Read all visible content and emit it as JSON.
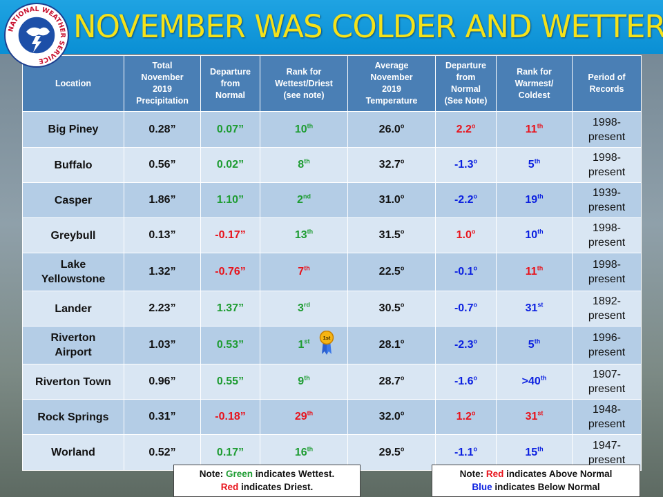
{
  "slide": {
    "title": "NOVEMBER WAS COLDER AND WETTER",
    "logo_text": "NATIONAL WEATHER SERVICE",
    "colors": {
      "title": "#f4e21a",
      "band": "#0a8fd4",
      "header": "#4a7fb5",
      "green": "#1e9c32",
      "red": "#e8121b",
      "blue": "#0a1fe0"
    }
  },
  "table": {
    "headers": {
      "location": "Location",
      "precip": [
        "Total",
        "November",
        "2019",
        "Precipitation"
      ],
      "precip_dep": [
        "Departure",
        "from",
        "Normal"
      ],
      "precip_rank": [
        "Rank for",
        "Wettest/Driest",
        "(see note)"
      ],
      "temp": [
        "Average",
        "November",
        "2019",
        "Temperature"
      ],
      "temp_dep": [
        "Departure",
        "from",
        "Normal",
        "(See Note)"
      ],
      "temp_rank": [
        "Rank for",
        "Warmest/",
        "Coldest"
      ],
      "period": [
        "Period of",
        "Records"
      ]
    },
    "rows": [
      {
        "loc": [
          "Big Piney"
        ],
        "precip": "0.28”",
        "pdep": "0.07”",
        "pdep_c": "green",
        "prank_n": "10",
        "prank_s": "th",
        "prank_c": "green",
        "temp": "26.0",
        "deg": "o",
        "tdep": "2.2",
        "tdep_c": "red",
        "trank_n": "11",
        "trank_s": "th",
        "trank_c": "red",
        "period": [
          "1998-",
          "present"
        ]
      },
      {
        "loc": [
          "Buffalo"
        ],
        "precip": "0.56”",
        "pdep": "0.02”",
        "pdep_c": "green",
        "prank_n": "8",
        "prank_s": "th",
        "prank_c": "green",
        "temp": "32.7",
        "deg": "o",
        "tdep": "-1.3",
        "tdep_c": "blue",
        "trank_n": "5",
        "trank_s": "th",
        "trank_c": "blue",
        "period": [
          "1998-",
          "present"
        ]
      },
      {
        "loc": [
          "Casper"
        ],
        "precip": "1.86”",
        "pdep": "1.10”",
        "pdep_c": "green",
        "prank_n": "2",
        "prank_s": "nd",
        "prank_c": "green",
        "temp": "31.0",
        "deg": "o",
        "tdep": "-2.2",
        "tdep_c": "blue",
        "trank_n": "19",
        "trank_s": "th",
        "trank_c": "blue",
        "period": [
          "1939-",
          "present"
        ]
      },
      {
        "loc": [
          "Greybull"
        ],
        "precip": "0.13”",
        "pdep": "-0.17”",
        "pdep_c": "red",
        "prank_n": "13",
        "prank_s": "th",
        "prank_c": "green",
        "temp": "31.5",
        "deg": "o",
        "tdep": "1.0",
        "tdep_c": "red",
        "trank_n": "10",
        "trank_s": "th",
        "trank_c": "blue",
        "period": [
          "1998-",
          "present"
        ]
      },
      {
        "loc": [
          "Lake",
          "Yellowstone"
        ],
        "precip": "1.32”",
        "pdep": "-0.76”",
        "pdep_c": "red",
        "prank_n": "7",
        "prank_s": "th",
        "prank_c": "red",
        "temp": "22.5",
        "deg": "o",
        "tdep": "-0.1",
        "tdep_c": "blue",
        "trank_n": "11",
        "trank_s": "th",
        "trank_c": "red",
        "period": [
          "1998-",
          "present"
        ]
      },
      {
        "loc": [
          "Lander"
        ],
        "precip": "2.23”",
        "pdep": "1.37”",
        "pdep_c": "green",
        "prank_n": "3",
        "prank_s": "rd",
        "prank_c": "green",
        "temp": "30.5",
        "deg": "o",
        "tdep": "-0.7",
        "tdep_c": "blue",
        "trank_n": "31",
        "trank_s": "st",
        "trank_c": "blue",
        "period": [
          "1892-",
          "present"
        ]
      },
      {
        "loc": [
          "Riverton",
          "Airport"
        ],
        "precip": "1.03”",
        "pdep": "0.53”",
        "pdep_c": "green",
        "prank_n": "1",
        "prank_s": "st",
        "prank_c": "green",
        "ribbon": "1st",
        "temp": "28.1",
        "deg": "o",
        "tdep": "-2.3",
        "tdep_c": "blue",
        "trank_n": "5",
        "trank_s": "th",
        "trank_c": "blue",
        "period": [
          "1996-",
          "present"
        ]
      },
      {
        "loc": [
          "Riverton Town"
        ],
        "precip": "0.96”",
        "pdep": "0.55”",
        "pdep_c": "green",
        "prank_n": "9",
        "prank_s": "th",
        "prank_c": "green",
        "temp": "28.7",
        "deg": "o",
        "tdep": "-1.6",
        "tdep_c": "blue",
        "trank_n": ">40",
        "trank_s": "th",
        "trank_c": "blue",
        "period": [
          "1907-",
          "present"
        ]
      },
      {
        "loc": [
          "Rock Springs"
        ],
        "precip": "0.31”",
        "pdep": "-0.18”",
        "pdep_c": "red",
        "prank_n": "29",
        "prank_s": "th",
        "prank_c": "red",
        "temp": "32.0",
        "deg": "o",
        "tdep": "1.2",
        "tdep_c": "red",
        "trank_n": "31",
        "trank_s": "st",
        "trank_c": "red",
        "period": [
          "1948-",
          "present"
        ]
      },
      {
        "loc": [
          "Worland"
        ],
        "precip": "0.52”",
        "pdep": "0.17”",
        "pdep_c": "green",
        "prank_n": "16",
        "prank_s": "th",
        "prank_c": "green",
        "temp": "29.5",
        "deg": "o",
        "tdep": "-1.1",
        "tdep_c": "blue",
        "trank_n": "15",
        "trank_s": "th",
        "trank_c": "blue",
        "period": [
          "1947-",
          "present"
        ]
      }
    ]
  },
  "notes": {
    "left": {
      "prefix": "Note: ",
      "green_word": "Green",
      "line1_rest": " indicates Wettest.",
      "red_word": "Red",
      "line2_rest": " indicates Driest."
    },
    "right": {
      "prefix": "Note: ",
      "red_word": "Red",
      "line1_rest": " indicates Above Normal",
      "blue_word": "Blue",
      "line2_rest": " indicates Below Normal"
    }
  }
}
